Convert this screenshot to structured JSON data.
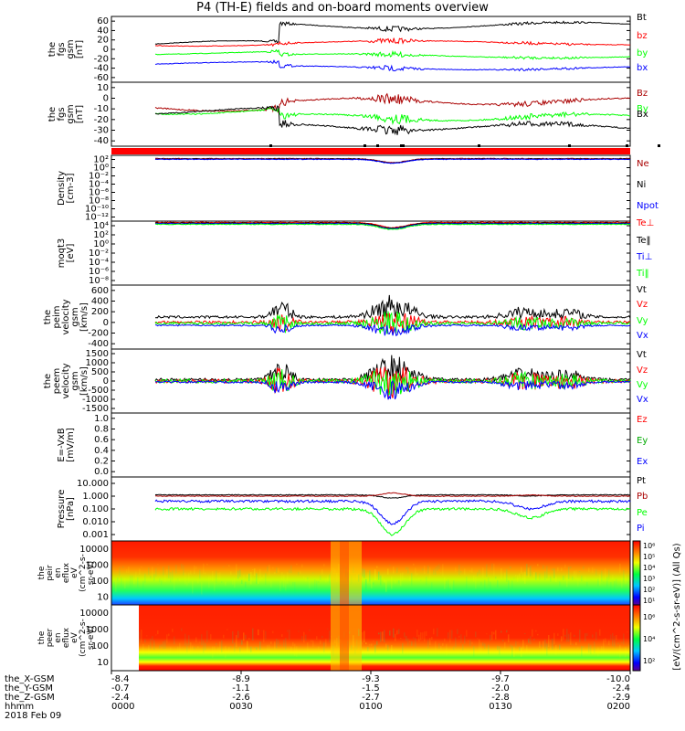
{
  "title": "P4 (TH-E) fields and on-board moments overview",
  "date_label": "2018 Feb 09",
  "chart_data": [
    {
      "type": "line",
      "ylabel": [
        "the",
        "fgs",
        "gsm",
        "[nT]"
      ],
      "ticks": [
        "60",
        "40",
        "20",
        "0",
        "-20",
        "-40",
        "-60"
      ],
      "ylim": [
        -60,
        60
      ],
      "series": [
        {
          "name": "Bt",
          "color": "#000000",
          "start": 8,
          "end": 55,
          "level": 45,
          "amp": 7
        },
        {
          "name": "bz",
          "color": "#ff0000",
          "start": 8,
          "end": 10,
          "level": 10,
          "amp": 2
        },
        {
          "name": "by",
          "color": "#00ff00",
          "start": -12,
          "end": -15,
          "level": -12,
          "amp": 6
        },
        {
          "name": "bx",
          "color": "#0000ff",
          "start": -30,
          "end": -30,
          "level": -25,
          "amp": 6
        }
      ]
    },
    {
      "type": "line",
      "ylabel": [
        "the",
        "fgs",
        "gsm",
        "[nT]"
      ],
      "ticks": [
        "10",
        "0",
        "-10",
        "-20",
        "-30",
        "-40"
      ],
      "ylim": [
        -45,
        12
      ],
      "series": [
        {
          "name": "Bz",
          "color": "#aa0000",
          "start": -10,
          "end": -6,
          "level": -6,
          "amp": 3
        },
        {
          "name": "By",
          "color": "#00ff00",
          "start": -12,
          "end": -12,
          "level": -18,
          "amp": 5
        },
        {
          "name": "Bx",
          "color": "#000000",
          "start": -10,
          "end": -30,
          "level": -26,
          "amp": 7
        }
      ]
    },
    {
      "type": "line",
      "ylabel": [
        "Density",
        "[cm-3]"
      ],
      "ticks": [
        "10²",
        "10⁰",
        "10⁻²",
        "10⁻⁴",
        "10⁻⁶",
        "10⁻⁸",
        "10⁻¹⁰",
        "10⁻¹²"
      ],
      "log": true,
      "series": [
        {
          "name": "Ne",
          "color": "#aa0000"
        },
        {
          "name": "Ni",
          "color": "#000000"
        },
        {
          "name": "Npot",
          "color": "#0000ff"
        }
      ]
    },
    {
      "type": "line",
      "ylabel": [
        "moqt3",
        "[eV]"
      ],
      "ticks": [
        "10⁴",
        "10²",
        "10⁰",
        "10⁻²",
        "10⁻⁴",
        "10⁻⁶",
        "10⁻⁸"
      ],
      "log": true,
      "series": [
        {
          "name": "Te⊥",
          "color": "#ff0000"
        },
        {
          "name": "Te‖",
          "color": "#000000"
        },
        {
          "name": "Ti⊥",
          "color": "#0000ff"
        },
        {
          "name": "Ti‖",
          "color": "#00ff00"
        }
      ]
    },
    {
      "type": "line",
      "ylabel": [
        "the",
        "peim",
        "velocity",
        "gsm",
        "[km/s]"
      ],
      "ticks": [
        "600",
        "400",
        "200",
        "0",
        "-200",
        "-400"
      ],
      "ylim": [
        -400,
        650
      ],
      "series": [
        {
          "name": "Vt",
          "color": "#000000"
        },
        {
          "name": "Vz",
          "color": "#ff0000"
        },
        {
          "name": "Vy",
          "color": "#00ff00"
        },
        {
          "name": "Vx",
          "color": "#0000ff"
        }
      ]
    },
    {
      "type": "line",
      "ylabel": [
        "the",
        "peem",
        "velocity",
        "gsm",
        "[km/s]"
      ],
      "ticks": [
        "1500",
        "1000",
        "500",
        "0",
        "-500",
        "-1000",
        "-1500"
      ],
      "ylim": [
        -1500,
        1600
      ],
      "series": [
        {
          "name": "Vt",
          "color": "#000000"
        },
        {
          "name": "Vz",
          "color": "#ff0000"
        },
        {
          "name": "Vy",
          "color": "#00ff00"
        },
        {
          "name": "Vx",
          "color": "#0000ff"
        }
      ]
    },
    {
      "type": "line",
      "ylabel": [
        "E=-VxB",
        "[mV/m]"
      ],
      "ticks": [
        "1.0",
        "0.8",
        "0.6",
        "0.4",
        "0.2",
        "0.0"
      ],
      "ylim": [
        0,
        1
      ],
      "series": [
        {
          "name": "Ez",
          "color": "#ff0000"
        },
        {
          "name": "Ey",
          "color": "#00aa00"
        },
        {
          "name": "Ex",
          "color": "#0000ff"
        }
      ]
    },
    {
      "type": "line",
      "ylabel": [
        "Pressure",
        "[nPa]"
      ],
      "ticks": [
        "10.000",
        "1.000",
        "0.100",
        "0.010",
        "0.001"
      ],
      "log": true,
      "series": [
        {
          "name": "Pt",
          "color": "#000000"
        },
        {
          "name": "Pb",
          "color": "#aa0000"
        },
        {
          "name": "Pe",
          "color": "#00ff00"
        },
        {
          "name": "Pi",
          "color": "#0000ff"
        }
      ]
    },
    {
      "type": "heatmap",
      "ylabel": [
        "the",
        "peir",
        "en",
        "eflux",
        "eV",
        "(cm^2-s-",
        "sr-eV)"
      ],
      "ticks": [
        "10000",
        "1000",
        "100",
        "10"
      ]
    },
    {
      "type": "heatmap",
      "ylabel": [
        "the",
        "peer",
        "en",
        "eflux",
        "eV",
        "(cm^2-s-",
        "sr-eV)"
      ],
      "ticks": [
        "10000",
        "1000",
        "100",
        "10"
      ]
    }
  ],
  "colorbar": {
    "label": "[eV/(cm^2-s-sr-eV)] (All Qs)",
    "top_ticks": [
      "10⁶",
      "10⁵",
      "10⁴",
      "10³",
      "10²",
      "10¹"
    ],
    "bottom_ticks": [
      "10⁶",
      "10⁴",
      "10²"
    ]
  },
  "x_axis": {
    "row_labels": [
      "the_X-GSM",
      "the_Y-GSM",
      "the_Z-GSM",
      "hhmm"
    ],
    "columns": [
      {
        "values": [
          "-8.4",
          "-0.7",
          "-2.4",
          "0000"
        ]
      },
      {
        "values": [
          "-8.9",
          "-1.1",
          "-2.6",
          "0030"
        ]
      },
      {
        "values": [
          "-9.3",
          "-1.5",
          "-2.7",
          "0100"
        ]
      },
      {
        "values": [
          "-9.7",
          "-2.0",
          "-2.8",
          "0130"
        ]
      },
      {
        "values": [
          "-10.0",
          "-2.4",
          "-2.9",
          "0200"
        ]
      }
    ]
  }
}
